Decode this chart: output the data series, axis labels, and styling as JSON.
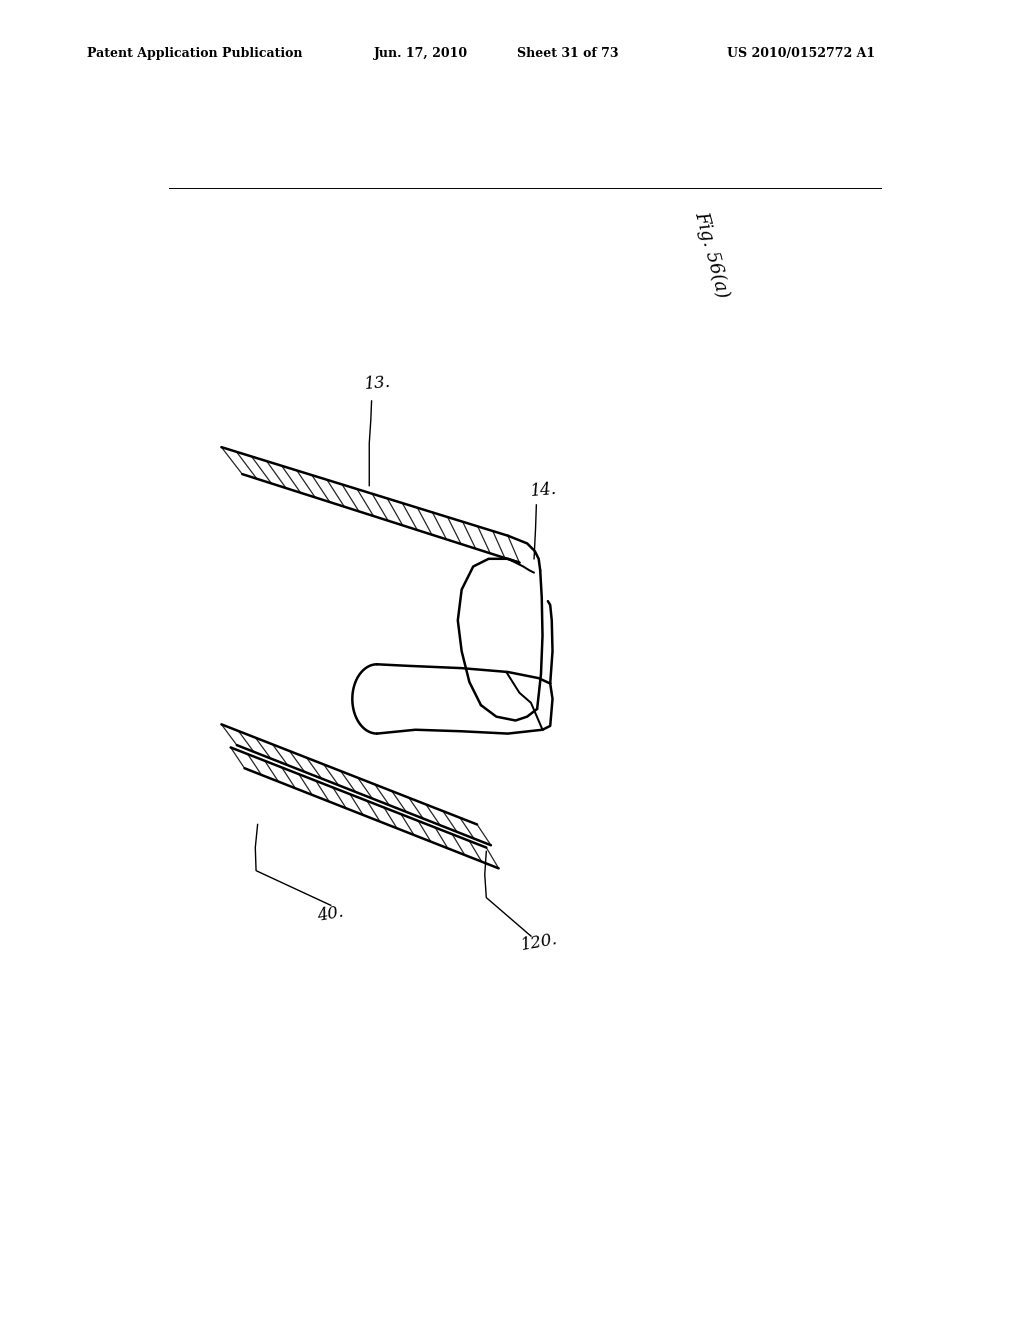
{
  "background_color": "#ffffff",
  "title_text": "Patent Application Publication",
  "title_date": "Jun. 17, 2010",
  "title_sheet": "Sheet 31 of 73",
  "title_patent": "US 2010/0152772 A1",
  "label_13": "13.",
  "label_14": "14.",
  "label_40": "40.",
  "label_120": "120.",
  "line_color": "#000000",
  "lw_main": 1.8,
  "lw_hatch": 0.9
}
